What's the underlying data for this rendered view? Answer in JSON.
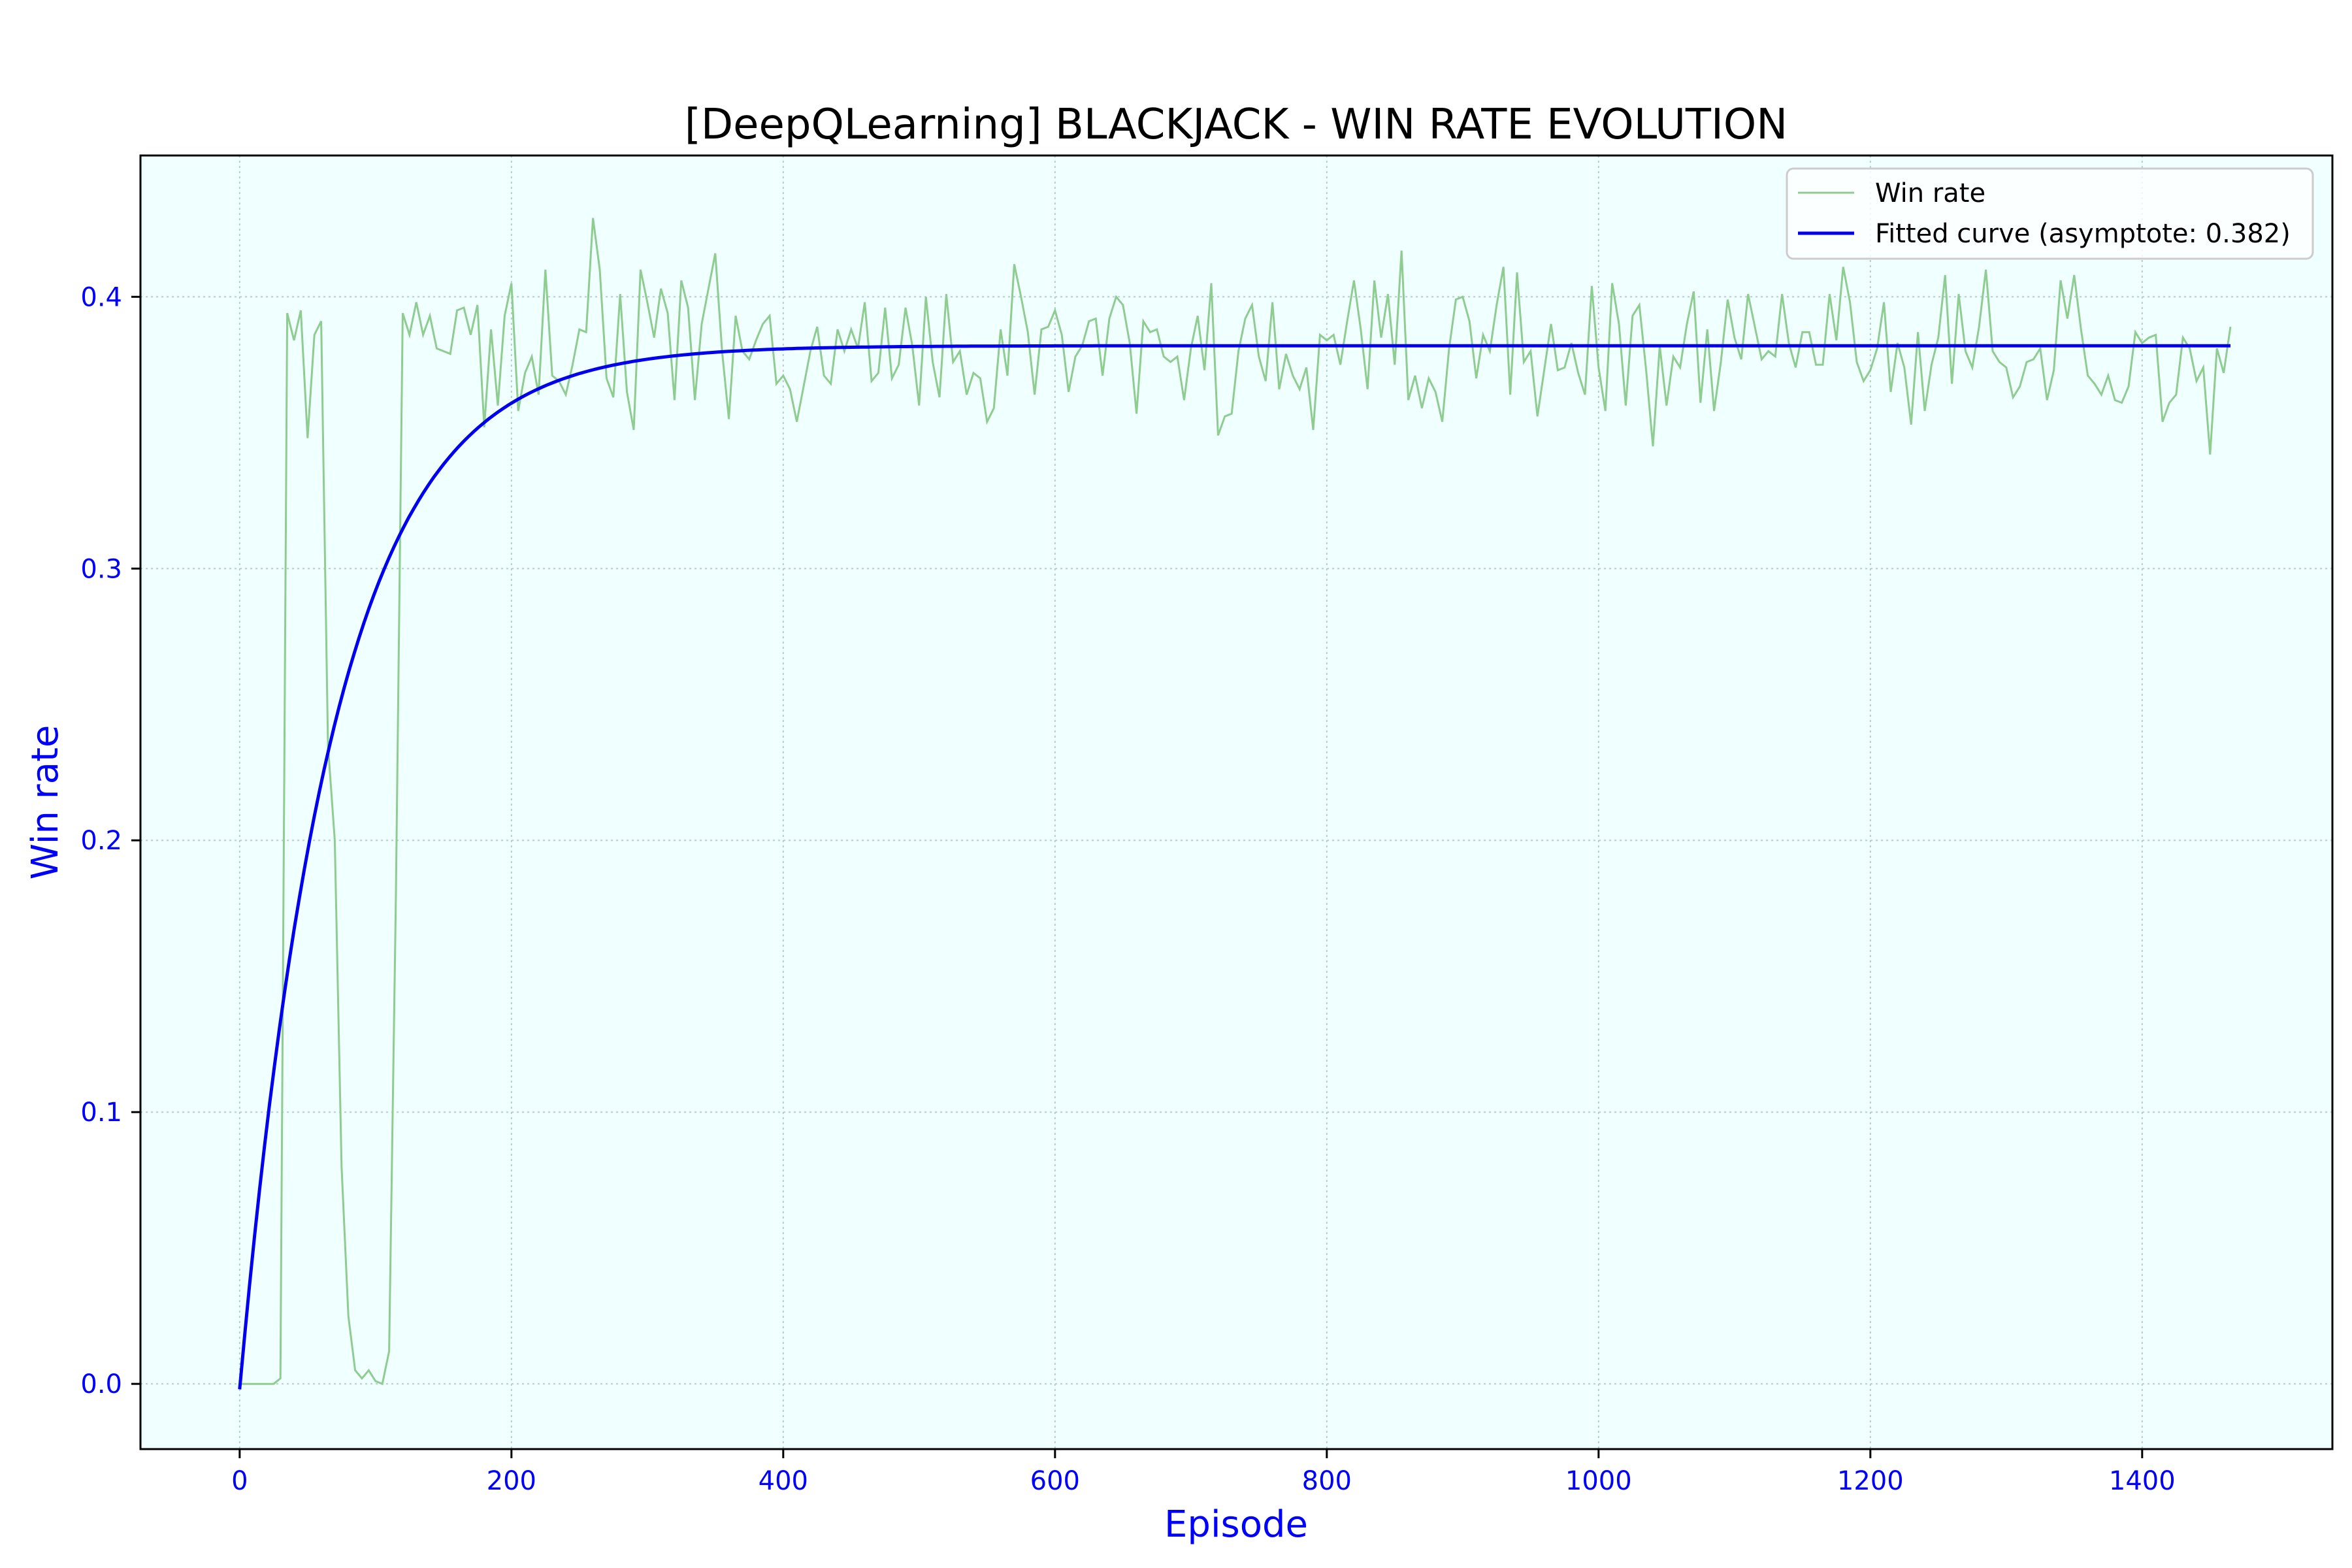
{
  "chart_data": {
    "type": "line",
    "title": "[DeepQLearning] BLACKJACK - WIN RATE EVOLUTION",
    "xlabel": "Episode",
    "ylabel": "Win rate",
    "xlim": [
      -73,
      1540
    ],
    "ylim": [
      -0.024,
      0.452
    ],
    "xticks": [
      0,
      200,
      400,
      600,
      800,
      1000,
      1200,
      1400
    ],
    "yticks": [
      0.0,
      0.1,
      0.2,
      0.3,
      0.4
    ],
    "xtick_labels": [
      "0",
      "200",
      "400",
      "600",
      "800",
      "1000",
      "1200",
      "1400"
    ],
    "ytick_labels": [
      "0.0",
      "0.1",
      "0.2",
      "0.3",
      "0.4"
    ],
    "grid": true,
    "legend_position": "top-right",
    "colors": {
      "plot_background": "#f0ffff",
      "win_rate_line": "#8fcc90",
      "fitted_curve": "#0000ee",
      "tick_label": "#0000ff",
      "axis_label": "#0000ff",
      "grid": "#b0d0c8"
    },
    "series": [
      {
        "name": "Win rate",
        "x": [
          0,
          5,
          10,
          15,
          20,
          25,
          30,
          35,
          40,
          45,
          50,
          55,
          60,
          65,
          70,
          75,
          80,
          85,
          90,
          95,
          100,
          105,
          110,
          115,
          120,
          125,
          130,
          135,
          140,
          145,
          150,
          155,
          160,
          165,
          170,
          175,
          180,
          185,
          190,
          195,
          200,
          205,
          210,
          215,
          220,
          225,
          230,
          235,
          240,
          245,
          250,
          255,
          260,
          265,
          270,
          275,
          280,
          285,
          290,
          295,
          300,
          305,
          310,
          315,
          320,
          325,
          330,
          335,
          340,
          345,
          350,
          355,
          360,
          365,
          370,
          375,
          380,
          385,
          390,
          395,
          400,
          405,
          410,
          415,
          420,
          425,
          430,
          435,
          440,
          445,
          450,
          455,
          460,
          465,
          470,
          475,
          480,
          485,
          490,
          495,
          500,
          505,
          510,
          515,
          520,
          525,
          530,
          535,
          540,
          545,
          550,
          555,
          560,
          565,
          570,
          575,
          580,
          585,
          590,
          595,
          600,
          605,
          610,
          615,
          620,
          625,
          630,
          635,
          640,
          645,
          650,
          655,
          660,
          665,
          670,
          675,
          680,
          685,
          690,
          695,
          700,
          705,
          710,
          715,
          720,
          725,
          730,
          735,
          740,
          745,
          750,
          755,
          760,
          765,
          770,
          775,
          780,
          785,
          790,
          795,
          800,
          805,
          810,
          815,
          820,
          825,
          830,
          835,
          840,
          845,
          850,
          855,
          860,
          865,
          870,
          875,
          880,
          885,
          890,
          895,
          900,
          905,
          910,
          915,
          920,
          925,
          930,
          935,
          940,
          945,
          950,
          955,
          960,
          965,
          970,
          975,
          980,
          985,
          990,
          995,
          1000,
          1005,
          1010,
          1015,
          1020,
          1025,
          1030,
          1035,
          1040,
          1045,
          1050,
          1055,
          1060,
          1065,
          1070,
          1075,
          1080,
          1085,
          1090,
          1095,
          1100,
          1105,
          1110,
          1115,
          1120,
          1125,
          1130,
          1135,
          1140,
          1145,
          1150,
          1155,
          1160,
          1165,
          1170,
          1175,
          1180,
          1185,
          1190,
          1195,
          1200,
          1205,
          1210,
          1215,
          1220,
          1225,
          1230,
          1235,
          1240,
          1245,
          1250,
          1255,
          1260,
          1265,
          1270,
          1275,
          1280,
          1285,
          1290,
          1295,
          1300,
          1305,
          1310,
          1315,
          1320,
          1325,
          1330,
          1335,
          1340,
          1345,
          1350,
          1355,
          1360,
          1365,
          1370,
          1375,
          1380,
          1385,
          1390,
          1395,
          1400,
          1405,
          1410,
          1415,
          1420,
          1425,
          1430,
          1435,
          1440,
          1445,
          1450,
          1455,
          1460,
          1465
        ],
        "y": [
          0.0,
          0.0,
          0.0,
          0.0,
          0.0,
          0.0,
          0.002,
          0.394,
          0.384,
          0.395,
          0.348,
          0.386,
          0.391,
          0.235,
          0.2,
          0.08,
          0.025,
          0.005,
          0.002,
          0.005,
          0.001,
          0.0,
          0.012,
          0.18,
          0.394,
          0.386,
          0.398,
          0.386,
          0.393,
          0.381,
          0.38,
          0.379,
          0.395,
          0.396,
          0.386,
          0.397,
          0.352,
          0.388,
          0.36,
          0.393,
          0.405,
          0.358,
          0.372,
          0.378,
          0.364,
          0.41,
          0.371,
          0.369,
          0.364,
          0.375,
          0.388,
          0.387,
          0.429,
          0.41,
          0.37,
          0.363,
          0.401,
          0.365,
          0.351,
          0.41,
          0.398,
          0.385,
          0.403,
          0.394,
          0.362,
          0.406,
          0.396,
          0.362,
          0.39,
          0.403,
          0.416,
          0.38,
          0.355,
          0.393,
          0.38,
          0.377,
          0.384,
          0.39,
          0.393,
          0.368,
          0.371,
          0.366,
          0.354,
          0.367,
          0.38,
          0.389,
          0.371,
          0.368,
          0.388,
          0.38,
          0.388,
          0.381,
          0.398,
          0.369,
          0.372,
          0.396,
          0.37,
          0.375,
          0.396,
          0.382,
          0.36,
          0.4,
          0.376,
          0.363,
          0.401,
          0.376,
          0.38,
          0.364,
          0.372,
          0.37,
          0.354,
          0.359,
          0.388,
          0.371,
          0.412,
          0.4,
          0.387,
          0.364,
          0.388,
          0.389,
          0.395,
          0.386,
          0.365,
          0.378,
          0.382,
          0.391,
          0.392,
          0.371,
          0.392,
          0.4,
          0.397,
          0.383,
          0.357,
          0.391,
          0.387,
          0.388,
          0.378,
          0.376,
          0.378,
          0.362,
          0.381,
          0.393,
          0.373,
          0.405,
          0.349,
          0.356,
          0.357,
          0.38,
          0.392,
          0.397,
          0.378,
          0.369,
          0.398,
          0.366,
          0.379,
          0.371,
          0.366,
          0.374,
          0.351,
          0.386,
          0.384,
          0.386,
          0.375,
          0.391,
          0.406,
          0.388,
          0.366,
          0.406,
          0.385,
          0.401,
          0.375,
          0.417,
          0.362,
          0.371,
          0.359,
          0.37,
          0.365,
          0.354,
          0.381,
          0.399,
          0.4,
          0.391,
          0.37,
          0.386,
          0.38,
          0.397,
          0.411,
          0.364,
          0.409,
          0.376,
          0.38,
          0.356,
          0.373,
          0.39,
          0.373,
          0.374,
          0.383,
          0.372,
          0.364,
          0.404,
          0.374,
          0.358,
          0.405,
          0.39,
          0.36,
          0.393,
          0.397,
          0.373,
          0.345,
          0.382,
          0.36,
          0.378,
          0.374,
          0.39,
          0.402,
          0.361,
          0.388,
          0.358,
          0.376,
          0.399,
          0.385,
          0.377,
          0.401,
          0.389,
          0.377,
          0.38,
          0.378,
          0.401,
          0.383,
          0.374,
          0.387,
          0.387,
          0.375,
          0.375,
          0.401,
          0.384,
          0.411,
          0.398,
          0.376,
          0.369,
          0.373,
          0.381,
          0.398,
          0.365,
          0.383,
          0.374,
          0.353,
          0.387,
          0.358,
          0.375,
          0.385,
          0.408,
          0.368,
          0.401,
          0.38,
          0.374,
          0.389,
          0.41,
          0.38,
          0.376,
          0.374,
          0.363,
          0.367,
          0.376,
          0.377,
          0.381,
          0.362,
          0.373,
          0.406,
          0.392,
          0.408,
          0.388,
          0.371,
          0.368,
          0.364,
          0.371,
          0.362,
          0.361,
          0.367,
          0.387,
          0.383,
          0.385,
          0.386,
          0.354,
          0.361,
          0.364,
          0.385,
          0.381,
          0.369,
          0.374,
          0.342,
          0.381,
          0.372,
          0.389
        ]
      },
      {
        "name": "Fitted curve (asymptote: 0.382)",
        "model": "exponential",
        "asymptote": 0.382,
        "y0": -0.002,
        "rate": 0.0145,
        "x_range": [
          0,
          1465
        ]
      }
    ]
  }
}
